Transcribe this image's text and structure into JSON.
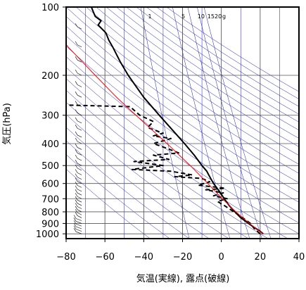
{
  "chart_data": {
    "type": "line",
    "title": "",
    "xlabel": "気温(実線), 露点(破線)",
    "ylabel": "気圧(hPa)",
    "xlim": [
      -80,
      40
    ],
    "ylim": [
      1050,
      100
    ],
    "yscale": "log",
    "x_ticks": [
      -80,
      -60,
      -40,
      -20,
      0,
      20,
      40
    ],
    "y_ticks": [
      100,
      200,
      300,
      400,
      500,
      600,
      700,
      800,
      900,
      1000
    ],
    "mixing_ratio_labels": [
      "1",
      "5",
      "10",
      "15",
      "20",
      "g"
    ],
    "grid": true,
    "colors": {
      "temperature": "#000000",
      "dewpoint": "#000000",
      "parcel": "#ff0000",
      "isotherm": "#1414c8",
      "adiabat": "#1414c8",
      "mixing_ratio": "#1414c8",
      "grid": "#555555",
      "wind_barb": "#000000"
    },
    "series": [
      {
        "style": "solid",
        "points": [
          {
            "p": 1000,
            "t": 21.6
          },
          {
            "p": 975,
            "t": 20.0
          },
          {
            "p": 950,
            "t": 18.0
          },
          {
            "p": 925,
            "t": 16.0
          },
          {
            "p": 900,
            "t": 14.0
          },
          {
            "p": 850,
            "t": 10.0
          },
          {
            "p": 800,
            "t": 7.0
          },
          {
            "p": 750,
            "t": 4.0
          },
          {
            "p": 700,
            "t": 1.5
          },
          {
            "p": 650,
            "t": -1.0
          },
          {
            "p": 600,
            "t": -4.0
          },
          {
            "p": 580,
            "t": -5.0
          },
          {
            "p": 550,
            "t": -6.5
          },
          {
            "p": 530,
            "t": -7.5
          },
          {
            "p": 500,
            "t": -10.0
          },
          {
            "p": 450,
            "t": -14.0
          },
          {
            "p": 400,
            "t": -19.0
          },
          {
            "p": 350,
            "t": -25.0
          },
          {
            "p": 300,
            "t": -32.0
          },
          {
            "p": 250,
            "t": -40.0
          },
          {
            "p": 200,
            "t": -48.0
          },
          {
            "p": 175,
            "t": -52.0
          },
          {
            "p": 150,
            "t": -56.0
          },
          {
            "p": 140,
            "t": -58.0
          },
          {
            "p": 130,
            "t": -59.5
          },
          {
            "p": 120,
            "t": -63.5
          },
          {
            "p": 115,
            "t": -62.0
          },
          {
            "p": 110,
            "t": -65.0
          },
          {
            "p": 105,
            "t": -66.0
          },
          {
            "p": 100,
            "t": -67.0
          }
        ]
      },
      {
        "style": "dashed",
        "points": [
          {
            "p": 1000,
            "t": 20.0
          },
          {
            "p": 975,
            "t": 18.5
          },
          {
            "p": 950,
            "t": 17.0
          },
          {
            "p": 900,
            "t": 15.0
          },
          {
            "p": 850,
            "t": 11.0
          },
          {
            "p": 800,
            "t": 6.5
          },
          {
            "p": 750,
            "t": 1.5
          },
          {
            "p": 720,
            "t": -2.0
          },
          {
            "p": 700,
            "t": 3.0
          },
          {
            "p": 680,
            "t": -4.0
          },
          {
            "p": 660,
            "t": 1.0
          },
          {
            "p": 640,
            "t": -8.0
          },
          {
            "p": 630,
            "t": 2.0
          },
          {
            "p": 610,
            "t": -12.0
          },
          {
            "p": 590,
            "t": -6.0
          },
          {
            "p": 570,
            "t": -10.0
          },
          {
            "p": 560,
            "t": -24.0
          },
          {
            "p": 550,
            "t": -15.0
          },
          {
            "p": 530,
            "t": -26.0
          },
          {
            "p": 520,
            "t": -46.0
          },
          {
            "p": 500,
            "t": -30.0
          },
          {
            "p": 480,
            "t": -45.0
          },
          {
            "p": 470,
            "t": -27.0
          },
          {
            "p": 450,
            "t": -35.0
          },
          {
            "p": 440,
            "t": -22.0
          },
          {
            "p": 420,
            "t": -28.0
          },
          {
            "p": 400,
            "t": -35.0
          },
          {
            "p": 380,
            "t": -26.0
          },
          {
            "p": 370,
            "t": -35.0
          },
          {
            "p": 360,
            "t": -30.0
          },
          {
            "p": 340,
            "t": -38.0
          },
          {
            "p": 320,
            "t": -35.0
          },
          {
            "p": 300,
            "t": -42.0
          },
          {
            "p": 290,
            "t": -44.0
          },
          {
            "p": 275,
            "t": -47.0
          },
          {
            "p": 270,
            "t": -83.0
          }
        ]
      },
      {
        "style": "solid",
        "color": "#ff0000",
        "points": [
          {
            "p": 1000,
            "t": 21.6
          },
          {
            "p": 950,
            "t": 18.0
          },
          {
            "p": 900,
            "t": 14.5
          },
          {
            "p": 850,
            "t": 11.0
          },
          {
            "p": 800,
            "t": 7.5
          },
          {
            "p": 700,
            "t": 0.5
          },
          {
            "p": 600,
            "t": -7.0
          },
          {
            "p": 500,
            "t": -16.0
          },
          {
            "p": 400,
            "t": -28.0
          },
          {
            "p": 300,
            "t": -44.0
          },
          {
            "p": 250,
            "t": -54.0
          },
          {
            "p": 200,
            "t": -65.0
          },
          {
            "p": 150,
            "t": -79.0
          },
          {
            "p": 146,
            "t": -80.0
          }
        ]
      }
    ]
  }
}
